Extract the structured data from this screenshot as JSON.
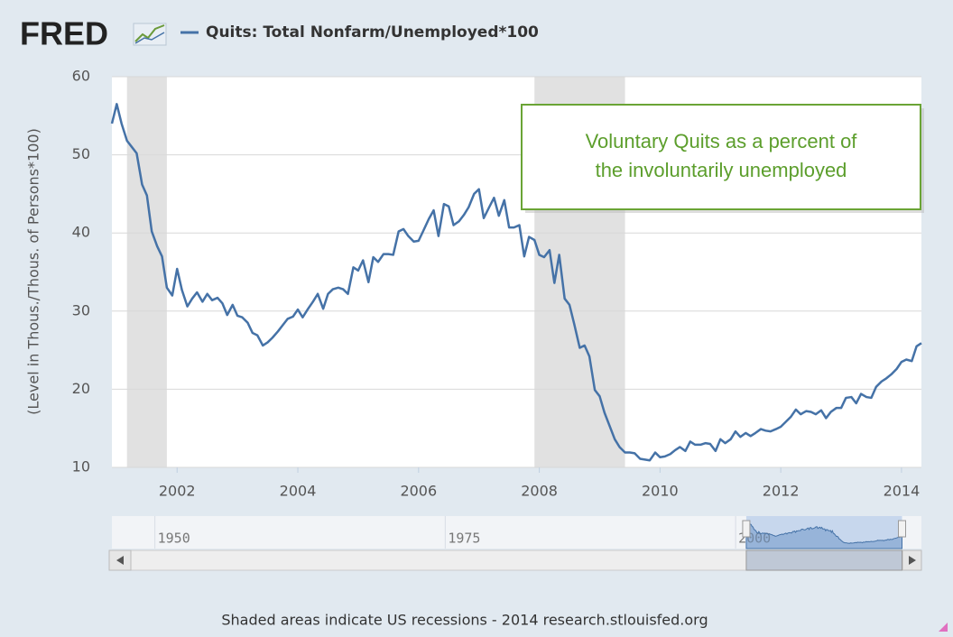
{
  "logo": "FRED",
  "chart_data": {
    "type": "line",
    "y_label": "(Level in Thous./Thous. of Persons*100)",
    "annotation": [
      "Voluntary Quits as a percent of",
      "the involuntarily unemployed"
    ],
    "footer": "Shaded areas indicate US recessions - 2014 research.stlouisfed.org",
    "xlim": [
      2000.92,
      2014.33
    ],
    "xticks": [
      2002,
      2004,
      2006,
      2008,
      2010,
      2012,
      2014
    ],
    "ylim": [
      10,
      60
    ],
    "yticks": [
      10,
      20,
      30,
      40,
      50,
      60
    ],
    "grid": true,
    "recessions": [
      [
        2001.17,
        2001.83
      ],
      [
        2007.92,
        2009.42
      ]
    ],
    "recession_color": "#e1e1e1",
    "x": [
      2000.92,
      2001.0,
      2001.08,
      2001.17,
      2001.25,
      2001.33,
      2001.42,
      2001.5,
      2001.58,
      2001.67,
      2001.75,
      2001.83,
      2001.92,
      2002.0,
      2002.08,
      2002.17,
      2002.25,
      2002.33,
      2002.42,
      2002.5,
      2002.58,
      2002.67,
      2002.75,
      2002.83,
      2002.92,
      2003.0,
      2003.08,
      2003.17,
      2003.25,
      2003.33,
      2003.42,
      2003.5,
      2003.58,
      2003.67,
      2003.75,
      2003.83,
      2003.92,
      2004.0,
      2004.08,
      2004.17,
      2004.25,
      2004.33,
      2004.42,
      2004.5,
      2004.58,
      2004.67,
      2004.75,
      2004.83,
      2004.92,
      2005.0,
      2005.08,
      2005.17,
      2005.25,
      2005.33,
      2005.42,
      2005.5,
      2005.58,
      2005.67,
      2005.75,
      2005.83,
      2005.92,
      2006.0,
      2006.08,
      2006.17,
      2006.25,
      2006.33,
      2006.42,
      2006.5,
      2006.58,
      2006.67,
      2006.75,
      2006.83,
      2006.92,
      2007.0,
      2007.08,
      2007.17,
      2007.25,
      2007.33,
      2007.42,
      2007.5,
      2007.58,
      2007.67,
      2007.75,
      2007.83,
      2007.92,
      2008.0,
      2008.08,
      2008.17,
      2008.25,
      2008.33,
      2008.42,
      2008.5,
      2008.58,
      2008.67,
      2008.75,
      2008.83,
      2008.92,
      2009.0,
      2009.08,
      2009.17,
      2009.25,
      2009.33,
      2009.42,
      2009.5,
      2009.58,
      2009.67,
      2009.75,
      2009.83,
      2009.92,
      2010.0,
      2010.08,
      2010.17,
      2010.25,
      2010.33,
      2010.42,
      2010.5,
      2010.58,
      2010.67,
      2010.75,
      2010.83,
      2010.92,
      2011.0,
      2011.08,
      2011.17,
      2011.25,
      2011.33,
      2011.42,
      2011.5,
      2011.58,
      2011.67,
      2011.75,
      2011.83,
      2011.92,
      2012.0,
      2012.08,
      2012.17,
      2012.25,
      2012.33,
      2012.42,
      2012.5,
      2012.58,
      2012.67,
      2012.75,
      2012.83,
      2012.92,
      2013.0,
      2013.08,
      2013.17,
      2013.25,
      2013.33,
      2013.42,
      2013.5,
      2013.58,
      2013.67,
      2013.75,
      2013.83,
      2013.92,
      2014.0,
      2014.08,
      2014.17,
      2014.25,
      2014.33
    ],
    "series": [
      {
        "name": "Quits: Total Nonfarm/Unemployed*100",
        "color": "#4572a7",
        "values": [
          54,
          56.5,
          54,
          51.8,
          51,
          50.2,
          46.2,
          44.8,
          40.2,
          38.3,
          37,
          33,
          32,
          35.4,
          32.7,
          30.6,
          31.6,
          32.4,
          31.2,
          32.2,
          31.4,
          31.7,
          31,
          29.5,
          30.8,
          29.4,
          29.2,
          28.5,
          27.2,
          26.9,
          25.6,
          26,
          26.6,
          27.4,
          28.2,
          29,
          29.3,
          30.2,
          29.2,
          30.3,
          31.2,
          32.2,
          30.3,
          32.2,
          32.8,
          33,
          32.8,
          32.2,
          35.6,
          35.2,
          36.5,
          33.7,
          36.9,
          36.3,
          37.3,
          37.3,
          37.2,
          40.2,
          40.5,
          39.6,
          38.9,
          39,
          40.3,
          41.8,
          42.9,
          39.6,
          43.7,
          43.4,
          41,
          41.5,
          42.3,
          43.3,
          45,
          45.6,
          41.9,
          43.3,
          44.5,
          42.2,
          44.2,
          40.7,
          40.7,
          41,
          37,
          39.5,
          39.1,
          37.2,
          36.9,
          37.8,
          33.6,
          37.2,
          31.6,
          30.8,
          28.3,
          25.3,
          25.6,
          24.2,
          19.9,
          19.1,
          17,
          15.2,
          13.6,
          12.6,
          11.9,
          11.9,
          11.8,
          11.1,
          11,
          10.9,
          11.9,
          11.3,
          11.4,
          11.7,
          12.2,
          12.6,
          12.1,
          13.3,
          12.9,
          12.9,
          13.1,
          13,
          12.1,
          13.6,
          13.1,
          13.6,
          14.6,
          13.9,
          14.4,
          14,
          14.4,
          14.9,
          14.7,
          14.6,
          14.9,
          15.2,
          15.8,
          16.5,
          17.4,
          16.8,
          17.2,
          17.1,
          16.8,
          17.3,
          16.3,
          17.1,
          17.6,
          17.6,
          18.9,
          19,
          18.2,
          19.4,
          19,
          18.9,
          20.3,
          21,
          21.4,
          21.9,
          22.6,
          23.5,
          23.8,
          23.6,
          25.5,
          25.9
        ]
      }
    ],
    "navigator": {
      "xlim": [
        1946.3,
        2016.0
      ],
      "xticks": [
        1950,
        1975,
        2000
      ]
    }
  }
}
